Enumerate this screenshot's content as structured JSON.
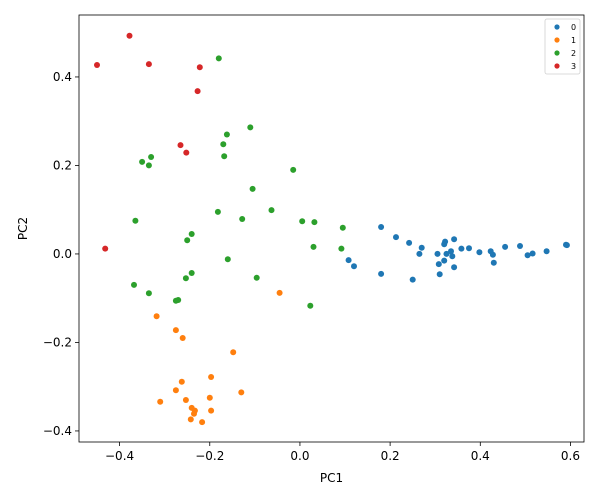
{
  "chart_data": {
    "type": "scatter",
    "title": "",
    "xlabel": "PC1",
    "ylabel": "PC2",
    "xlim": [
      -0.49,
      0.63
    ],
    "ylim": [
      -0.425,
      0.54
    ],
    "xticks": [
      -0.4,
      -0.2,
      0.0,
      0.2,
      0.4,
      0.6
    ],
    "xtick_labels": [
      "−0.4",
      "−0.2",
      "0.0",
      "0.2",
      "0.4",
      "0.6"
    ],
    "yticks": [
      -0.4,
      -0.2,
      0.0,
      0.2,
      0.4
    ],
    "ytick_labels": [
      "−0.4",
      "−0.2",
      "0.0",
      "0.2",
      "0.4"
    ],
    "grid": false,
    "legend_position": "top-right",
    "series": [
      {
        "name": "0",
        "color": "#1f77b4",
        "points": [
          [
            0.18,
            0.061
          ],
          [
            0.213,
            0.038
          ],
          [
            0.242,
            0.025
          ],
          [
            0.27,
            0.014
          ],
          [
            0.265,
            0.0
          ],
          [
            0.18,
            -0.045
          ],
          [
            0.25,
            -0.058
          ],
          [
            0.31,
            -0.046
          ],
          [
            0.308,
            -0.023
          ],
          [
            0.32,
            -0.015
          ],
          [
            0.342,
            -0.03
          ],
          [
            0.322,
            0.028
          ],
          [
            0.32,
            0.022
          ],
          [
            0.342,
            0.033
          ],
          [
            0.358,
            0.012
          ],
          [
            0.375,
            0.013
          ],
          [
            0.398,
            0.004
          ],
          [
            0.423,
            0.006
          ],
          [
            0.428,
            -0.002
          ],
          [
            0.43,
            -0.02
          ],
          [
            0.455,
            0.016
          ],
          [
            0.488,
            0.018
          ],
          [
            0.505,
            -0.003
          ],
          [
            0.516,
            0.001
          ],
          [
            0.547,
            0.006
          ],
          [
            0.59,
            0.021
          ],
          [
            0.592,
            0.02
          ],
          [
            0.305,
            0.0
          ],
          [
            0.325,
            0.0
          ],
          [
            0.335,
            0.006
          ],
          [
            0.338,
            -0.005
          ],
          [
            0.108,
            -0.014
          ],
          [
            0.12,
            -0.028
          ]
        ]
      },
      {
        "name": "1",
        "color": "#ff7f0e",
        "points": [
          [
            -0.318,
            -0.141
          ],
          [
            -0.275,
            -0.172
          ],
          [
            -0.26,
            -0.19
          ],
          [
            -0.148,
            -0.222
          ],
          [
            -0.045,
            -0.088
          ],
          [
            -0.262,
            -0.289
          ],
          [
            -0.275,
            -0.308
          ],
          [
            -0.31,
            -0.334
          ],
          [
            -0.253,
            -0.33
          ],
          [
            -0.24,
            -0.348
          ],
          [
            -0.233,
            -0.354
          ],
          [
            -0.235,
            -0.361
          ],
          [
            -0.242,
            -0.374
          ],
          [
            -0.217,
            -0.38
          ],
          [
            -0.197,
            -0.278
          ],
          [
            -0.13,
            -0.313
          ],
          [
            -0.2,
            -0.325
          ],
          [
            -0.197,
            -0.354
          ]
        ]
      },
      {
        "name": "2",
        "color": "#2ca02c",
        "points": [
          [
            -0.18,
            0.442
          ],
          [
            -0.11,
            0.286
          ],
          [
            -0.162,
            0.27
          ],
          [
            -0.17,
            0.248
          ],
          [
            -0.168,
            0.221
          ],
          [
            -0.33,
            0.219
          ],
          [
            -0.35,
            0.208
          ],
          [
            -0.335,
            0.2
          ],
          [
            -0.015,
            0.19
          ],
          [
            -0.105,
            0.147
          ],
          [
            -0.182,
            0.095
          ],
          [
            -0.128,
            0.079
          ],
          [
            -0.063,
            0.099
          ],
          [
            0.005,
            0.074
          ],
          [
            0.032,
            0.072
          ],
          [
            0.095,
            0.059
          ],
          [
            -0.365,
            0.075
          ],
          [
            -0.24,
            0.045
          ],
          [
            -0.25,
            0.031
          ],
          [
            0.03,
            0.016
          ],
          [
            0.092,
            0.012
          ],
          [
            -0.16,
            -0.012
          ],
          [
            -0.24,
            -0.043
          ],
          [
            -0.253,
            -0.055
          ],
          [
            -0.096,
            -0.054
          ],
          [
            -0.368,
            -0.07
          ],
          [
            -0.335,
            -0.089
          ],
          [
            -0.27,
            -0.104
          ],
          [
            -0.275,
            -0.106
          ],
          [
            0.023,
            -0.117
          ]
        ]
      },
      {
        "name": "3",
        "color": "#d62728",
        "points": [
          [
            -0.378,
            0.493
          ],
          [
            -0.45,
            0.427
          ],
          [
            -0.335,
            0.429
          ],
          [
            -0.222,
            0.422
          ],
          [
            -0.227,
            0.368
          ],
          [
            -0.265,
            0.246
          ],
          [
            -0.252,
            0.229
          ],
          [
            -0.432,
            0.012
          ]
        ]
      }
    ]
  }
}
